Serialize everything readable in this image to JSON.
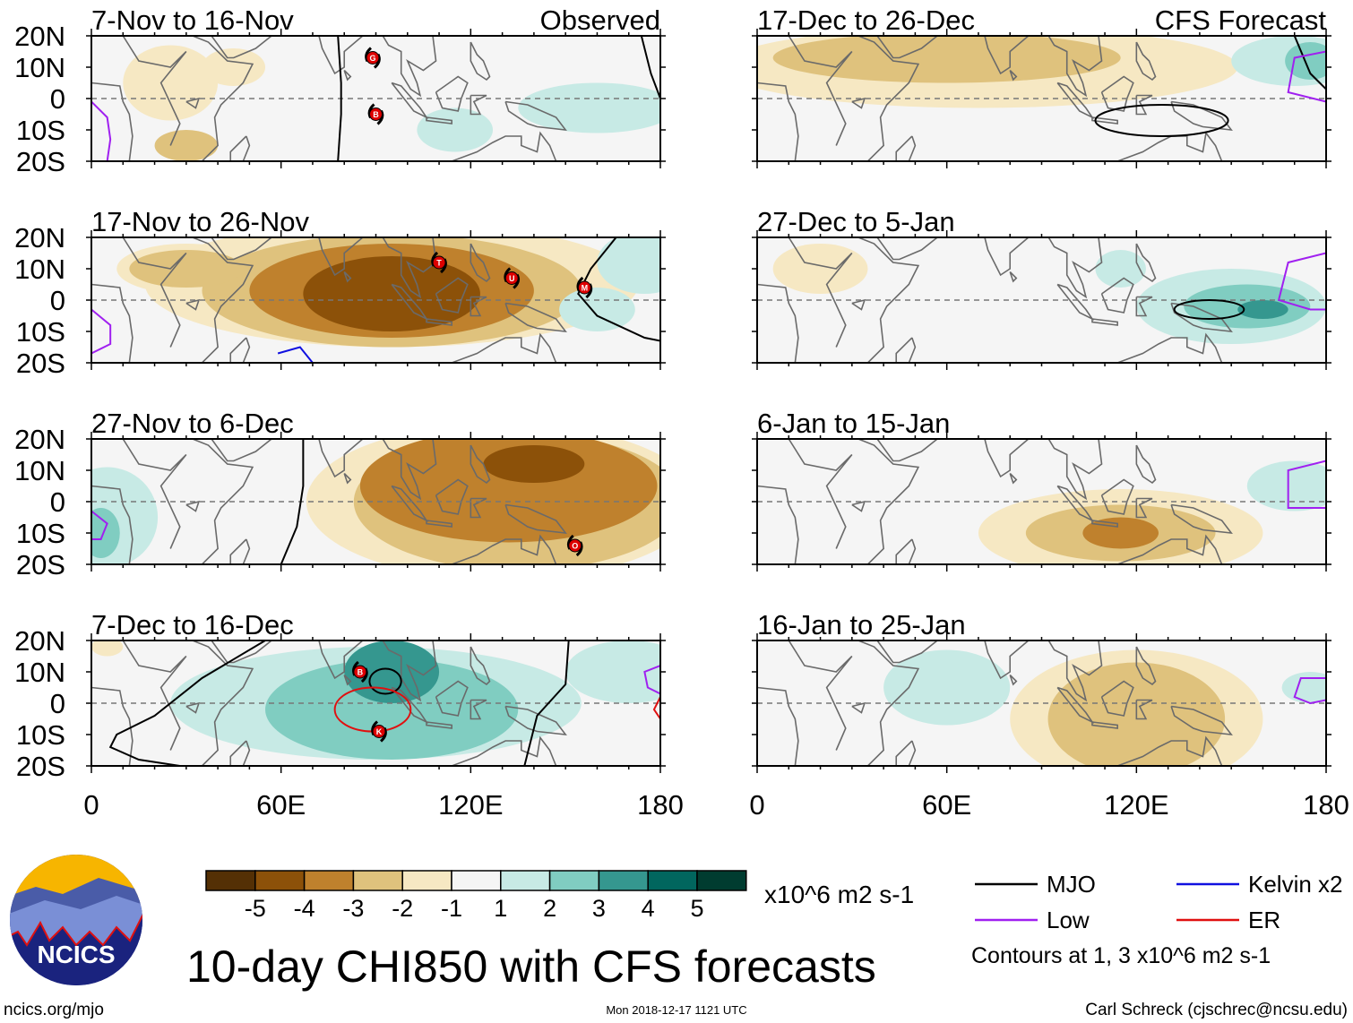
{
  "figure_title": "10-day CHI850 with CFS forecasts",
  "footer": {
    "left": "ncics.org/mjo",
    "center": "Mon 2018-12-17 1121 UTC",
    "right": "Carl Schreck (cjschrec@ncsu.edu)"
  },
  "logo_text": "NCICS",
  "column_labels": {
    "observed": "Observed",
    "forecast": "CFS Forecast"
  },
  "lat_ticks": [
    "20N",
    "10N",
    "0",
    "10S",
    "20S"
  ],
  "lon_ticks": [
    "0",
    "60E",
    "120E",
    "180"
  ],
  "colorbar": {
    "units": "x10^6 m2 s-1",
    "labels": [
      "-5",
      "-4",
      "-3",
      "-2",
      "-1",
      "1",
      "2",
      "3",
      "4",
      "5"
    ],
    "colors": [
      "#543005",
      "#8c5109",
      "#bf812d",
      "#dfc27d",
      "#f6e8c3",
      "#f5f5f5",
      "#c7eae5",
      "#80cdc1",
      "#35978f",
      "#01665e",
      "#003c30"
    ]
  },
  "legend": {
    "items": [
      {
        "label": "MJO",
        "color": "#000000"
      },
      {
        "label": "Kelvin x2",
        "color": "#1010e0"
      },
      {
        "label": "Low",
        "color": "#a020f0"
      },
      {
        "label": "ER",
        "color": "#e01010"
      }
    ],
    "note": "Contours at 1, 3 x10^6 m2 s-1"
  },
  "chart_data": {
    "type": "map",
    "variable": "CHI850 anomaly",
    "lon_range": [
      0,
      180
    ],
    "lat_range": [
      -20,
      20
    ],
    "panels": [
      {
        "title": "7-Nov to 16-Nov",
        "kind": "observed",
        "anomalies": [
          [
            -1,
            25,
            5,
            15,
            12
          ],
          [
            -1,
            45,
            10,
            10,
            6
          ],
          [
            -2,
            30,
            -15,
            10,
            5
          ],
          [
            1,
            160,
            -3,
            25,
            8
          ],
          [
            1,
            115,
            -10,
            12,
            7
          ]
        ],
        "contours": [
          {
            "type": "MJO",
            "pts": [
              [
                78,
                20
              ],
              [
                79,
                5
              ],
              [
                79,
                -5
              ],
              [
                78,
                -20
              ]
            ]
          },
          {
            "type": "MJO",
            "pts": [
              [
                174,
                20
              ],
              [
                177,
                8
              ],
              [
                180,
                0
              ]
            ]
          },
          {
            "type": "Low",
            "pts": [
              [
                0,
                -1
              ],
              [
                5,
                -6
              ],
              [
                6,
                -13
              ],
              [
                5,
                -20
              ]
            ]
          }
        ],
        "storms": [
          {
            "letter": "G",
            "lon": 89,
            "lat": 13
          },
          {
            "letter": "B",
            "lon": 90,
            "lat": -5
          }
        ]
      },
      {
        "title": "17-Nov to 26-Nov",
        "kind": "observed",
        "anomalies": [
          [
            -1,
            95,
            5,
            78,
            20
          ],
          [
            -1,
            30,
            10,
            22,
            8
          ],
          [
            -2,
            95,
            3,
            60,
            18
          ],
          [
            -2,
            30,
            10,
            18,
            6
          ],
          [
            -3,
            95,
            3,
            45,
            15
          ],
          [
            -4,
            95,
            2,
            28,
            12
          ],
          [
            1,
            175,
            12,
            15,
            10
          ],
          [
            1,
            160,
            -3,
            12,
            7
          ]
        ],
        "contours": [
          {
            "type": "MJO",
            "pts": [
              [
                166,
                20
              ],
              [
                158,
                10
              ],
              [
                154,
                2
              ],
              [
                160,
                -5
              ],
              [
                175,
                -12
              ],
              [
                180,
                -13
              ]
            ]
          },
          {
            "type": "Low",
            "pts": [
              [
                0,
                -3
              ],
              [
                6,
                -8
              ],
              [
                6,
                -14
              ],
              [
                0,
                -17
              ]
            ]
          },
          {
            "type": "Kelvin",
            "pts": [
              [
                59,
                -17
              ],
              [
                66,
                -15
              ],
              [
                70,
                -20
              ]
            ]
          }
        ],
        "storms": [
          {
            "letter": "T",
            "lon": 110,
            "lat": 12
          },
          {
            "letter": "U",
            "lon": 133,
            "lat": 7
          },
          {
            "letter": "M",
            "lon": 156,
            "lat": 4
          }
        ]
      },
      {
        "title": "27-Nov to 6-Dec",
        "kind": "observed",
        "anomalies": [
          [
            -1,
            130,
            0,
            62,
            25
          ],
          [
            -2,
            135,
            0,
            52,
            22
          ],
          [
            -3,
            132,
            5,
            47,
            18
          ],
          [
            -4,
            140,
            12,
            16,
            6
          ],
          [
            1,
            5,
            -5,
            16,
            16
          ],
          [
            2,
            3,
            -10,
            6,
            8
          ]
        ],
        "contours": [
          {
            "type": "MJO",
            "pts": [
              [
                67,
                20
              ],
              [
                67,
                5
              ],
              [
                65,
                -8
              ],
              [
                60,
                -20
              ]
            ]
          },
          {
            "type": "Low",
            "pts": [
              [
                0,
                -3
              ],
              [
                5,
                -7
              ],
              [
                3,
                -12
              ],
              [
                0,
                -12
              ]
            ]
          }
        ],
        "storms": [
          {
            "letter": "O",
            "lon": 153,
            "lat": -14
          }
        ]
      },
      {
        "title": "7-Dec to 16-Dec",
        "kind": "observed",
        "anomalies": [
          [
            1,
            90,
            0,
            65,
            18
          ],
          [
            1,
            170,
            10,
            20,
            10
          ],
          [
            -1,
            5,
            18,
            5,
            3
          ],
          [
            2,
            95,
            -2,
            40,
            16
          ],
          [
            3,
            95,
            10,
            15,
            10
          ]
        ],
        "contours": [
          {
            "type": "MJO",
            "pts": [
              [
                55,
                20
              ],
              [
                35,
                8
              ],
              [
                20,
                -4
              ],
              [
                8,
                -10
              ],
              [
                6,
                -14
              ],
              [
                15,
                -18
              ],
              [
                28,
                -20
              ]
            ]
          },
          {
            "type": "MJO",
            "pts": [
              [
                151,
                20
              ],
              [
                150,
                6
              ],
              [
                141,
                -4
              ],
              [
                137,
                -20
              ]
            ]
          },
          {
            "type": "MJO",
            "ellipse": [
              93,
              7,
              5,
              4
            ]
          },
          {
            "type": "ER",
            "ellipse": [
              89,
              -2,
              12,
              7
            ]
          },
          {
            "type": "Low",
            "pts": [
              [
                180,
                12
              ],
              [
                175,
                10
              ],
              [
                176,
                5
              ],
              [
                180,
                3
              ]
            ]
          },
          {
            "type": "ER",
            "pts": [
              [
                180,
                2
              ],
              [
                178,
                -2
              ],
              [
                180,
                -5
              ]
            ]
          }
        ],
        "storms": [
          {
            "letter": "B",
            "lon": 85,
            "lat": 10
          },
          {
            "letter": "K",
            "lon": 91,
            "lat": -9
          }
        ]
      },
      {
        "title": "17-Dec to 26-Dec",
        "kind": "forecast",
        "anomalies": [
          [
            -1,
            70,
            10,
            82,
            13
          ],
          [
            -2,
            60,
            13,
            55,
            8
          ],
          [
            1,
            170,
            12,
            20,
            8
          ],
          [
            2,
            175,
            12,
            8,
            6
          ]
        ],
        "contours": [
          {
            "type": "MJO",
            "ellipse": [
              128,
              -7,
              21,
              5
            ]
          },
          {
            "type": "MJO",
            "pts": [
              [
                170,
                20
              ],
              [
                175,
                8
              ],
              [
                180,
                3
              ]
            ]
          },
          {
            "type": "Low",
            "pts": [
              [
                180,
                15
              ],
              [
                170,
                13
              ],
              [
                168,
                2
              ],
              [
                180,
                -1
              ]
            ]
          }
        ],
        "storms": []
      },
      {
        "title": "27-Dec to 5-Jan",
        "kind": "forecast",
        "anomalies": [
          [
            -1,
            20,
            10,
            15,
            8
          ],
          [
            1,
            150,
            -2,
            30,
            12
          ],
          [
            1,
            115,
            10,
            8,
            6
          ],
          [
            2,
            155,
            -2,
            20,
            7
          ],
          [
            3,
            160,
            -3,
            8,
            3
          ]
        ],
        "contours": [
          {
            "type": "MJO",
            "ellipse": [
              143,
              -3,
              11,
              3
            ]
          },
          {
            "type": "Low",
            "pts": [
              [
                180,
                15
              ],
              [
                168,
                12
              ],
              [
                165,
                0
              ],
              [
                175,
                -3
              ],
              [
                180,
                -3
              ]
            ]
          }
        ],
        "storms": []
      },
      {
        "title": "6-Jan to 15-Jan",
        "kind": "forecast",
        "anomalies": [
          [
            -1,
            115,
            -10,
            45,
            14
          ],
          [
            -2,
            115,
            -10,
            30,
            9
          ],
          [
            -3,
            115,
            -10,
            12,
            5
          ],
          [
            1,
            170,
            5,
            15,
            8
          ]
        ],
        "contours": [
          {
            "type": "Low",
            "pts": [
              [
                180,
                13
              ],
              [
                168,
                10
              ],
              [
                168,
                -2
              ],
              [
                180,
                -2
              ]
            ]
          }
        ],
        "storms": []
      },
      {
        "title": "16-Jan to 25-Jan",
        "kind": "forecast",
        "anomalies": [
          [
            -1,
            120,
            -5,
            40,
            22
          ],
          [
            -2,
            120,
            -5,
            28,
            18
          ],
          [
            1,
            175,
            5,
            9,
            5
          ],
          [
            1,
            60,
            5,
            20,
            12
          ]
        ],
        "contours": [
          {
            "type": "Low",
            "pts": [
              [
                180,
                8
              ],
              [
                172,
                8
              ],
              [
                170,
                2
              ],
              [
                175,
                0
              ],
              [
                180,
                1
              ]
            ]
          }
        ],
        "storms": []
      }
    ]
  }
}
